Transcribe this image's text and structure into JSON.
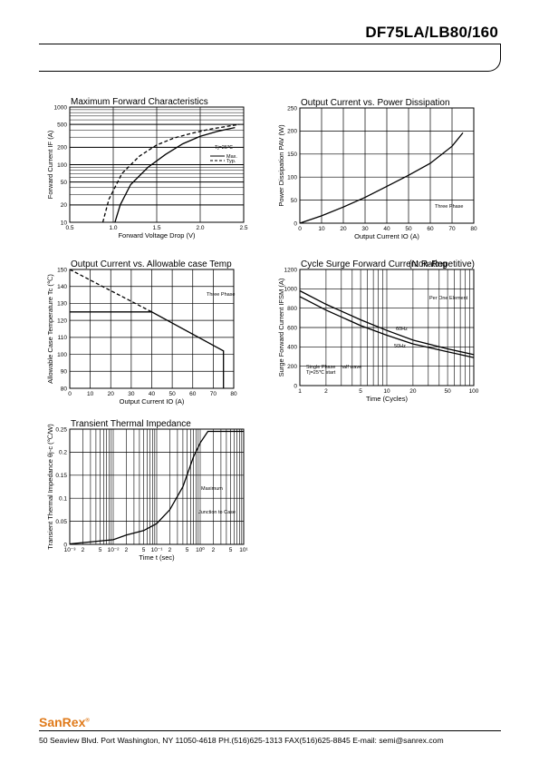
{
  "header": {
    "title": "DF75LA/LB80/160"
  },
  "footer": {
    "logo_text": "SanRex",
    "address": "50 Seaview Blvd.  Port Washington, NY 11050-4618  PH.(516)625-1313  FAX(516)625-8845  E-mail: semi@sanrex.com"
  },
  "chart_data": [
    {
      "id": "fwd",
      "type": "line",
      "title": "Maximum Forward Characteristics",
      "xlabel": "Forward Voltage Drop (V)",
      "ylabel": "Forward Current  IF (A)",
      "xlim": [
        0.5,
        2.5
      ],
      "ylim": [
        10,
        1000
      ],
      "yscale": "log",
      "xticks": [
        0.5,
        1.0,
        1.5,
        2.0,
        2.5
      ],
      "xtick_labels": [
        "0.5",
        "1.0",
        "1.5",
        "2.0",
        "2.5"
      ],
      "yticks": [
        10,
        20,
        50,
        100,
        200,
        500,
        1000
      ],
      "ytick_labels": [
        "10",
        "20",
        "50",
        "100",
        "200",
        "500",
        "1000"
      ],
      "annotations": [
        "Tj=25℃"
      ],
      "legend": [
        "Max.",
        "Typ."
      ],
      "series": [
        {
          "name": "Max.",
          "style": "solid",
          "x": [
            1.02,
            1.08,
            1.2,
            1.4,
            1.6,
            1.8,
            2.0,
            2.2,
            2.4
          ],
          "y": [
            10,
            20,
            45,
            90,
            150,
            230,
            310,
            380,
            440
          ]
        },
        {
          "name": "Typ.",
          "style": "dashed",
          "x": [
            0.88,
            0.95,
            1.1,
            1.3,
            1.5,
            1.7,
            1.9,
            2.1,
            2.3,
            2.45
          ],
          "y": [
            10,
            25,
            70,
            140,
            220,
            290,
            350,
            410,
            460,
            500
          ]
        }
      ]
    },
    {
      "id": "pow",
      "type": "line",
      "title": "Output Current vs. Power Dissipation",
      "xlabel": "Output Current IO (A)",
      "ylabel": "Power Dissipation PAV (W)",
      "xlim": [
        0,
        80
      ],
      "ylim": [
        0,
        250
      ],
      "xticks": [
        0,
        10,
        20,
        30,
        40,
        50,
        60,
        70,
        80
      ],
      "xtick_labels": [
        "0",
        "10",
        "20",
        "30",
        "40",
        "50",
        "60",
        "70",
        "80"
      ],
      "yticks": [
        0,
        50,
        100,
        150,
        200,
        250
      ],
      "ytick_labels": [
        "0",
        "50",
        "100",
        "150",
        "200",
        "250"
      ],
      "annotations": [
        "Three Phase"
      ],
      "series": [
        {
          "name": "Three Phase",
          "style": "solid",
          "x": [
            0,
            10,
            20,
            30,
            40,
            50,
            60,
            70,
            75
          ],
          "y": [
            0,
            16,
            35,
            56,
            80,
            104,
            130,
            167,
            196
          ]
        }
      ]
    },
    {
      "id": "case",
      "type": "line",
      "title": "Output Current vs. Allowable case Temp",
      "xlabel": "Output Current IO (A)",
      "ylabel": "Allowable Case Temperature Tc (℃)",
      "xlim": [
        0,
        80
      ],
      "ylim": [
        80,
        150
      ],
      "xticks": [
        0,
        10,
        20,
        30,
        40,
        50,
        60,
        70,
        80
      ],
      "xtick_labels": [
        "0",
        "10",
        "20",
        "30",
        "40",
        "50",
        "60",
        "70",
        "80"
      ],
      "yticks": [
        80,
        90,
        100,
        110,
        120,
        130,
        140,
        150
      ],
      "ytick_labels": [
        "80",
        "90",
        "100",
        "110",
        "120",
        "130",
        "140",
        "150"
      ],
      "annotations": [
        "Three Phase"
      ],
      "series": [
        {
          "name": "Three Phase",
          "style": "solid",
          "x": [
            0,
            40,
            75,
            75
          ],
          "y": [
            125,
            125,
            102,
            80
          ]
        },
        {
          "name": "",
          "style": "dashed",
          "x": [
            0,
            40
          ],
          "y": [
            150,
            125
          ]
        }
      ]
    },
    {
      "id": "surge",
      "type": "line",
      "title": "Cycle Surge Forward Current Rating",
      "subtitle": "(Non-Repetitive)",
      "xlabel": "Time (Cycles)",
      "ylabel": "Surge Forward Current IFSM (A)",
      "xlim": [
        1,
        100
      ],
      "xscale": "log",
      "ylim": [
        0,
        1200
      ],
      "xticks": [
        1,
        2,
        5,
        10,
        20,
        50,
        100
      ],
      "xtick_labels": [
        "1",
        "2",
        "5",
        "10",
        "20",
        "50",
        "100"
      ],
      "yticks": [
        0,
        200,
        400,
        600,
        800,
        1000,
        1200
      ],
      "ytick_labels": [
        "0",
        "200",
        "400",
        "600",
        "800",
        "1000",
        "1200"
      ],
      "annotations": [
        "Per One Element",
        "Single Phase",
        "half wave",
        "Tj=25℃ start",
        "60Hz",
        "50Hz"
      ],
      "series": [
        {
          "name": "60Hz",
          "style": "solid",
          "x": [
            1,
            2,
            5,
            10,
            20,
            50,
            100
          ],
          "y": [
            980,
            840,
            680,
            570,
            470,
            380,
            320
          ]
        },
        {
          "name": "50Hz",
          "style": "solid",
          "x": [
            1,
            2,
            5,
            10,
            20,
            50,
            100
          ],
          "y": [
            920,
            780,
            620,
            520,
            430,
            350,
            290
          ]
        }
      ]
    },
    {
      "id": "thermal",
      "type": "line",
      "title": "Transient Thermal Impedance",
      "xlabel": "Time t (sec)",
      "ylabel": "Transient Thermal Impedance θj-c (℃/W)",
      "xlim": [
        0.001,
        10
      ],
      "xscale": "log",
      "ylim": [
        0,
        0.25
      ],
      "xticks": [
        0.001,
        0.002,
        0.005,
        0.01,
        0.02,
        0.05,
        0.1,
        0.2,
        0.5,
        1,
        2,
        5,
        10
      ],
      "xtick_labels": [
        "10⁻³",
        "2",
        "5",
        "10⁻²",
        "2",
        "5",
        "10⁻¹",
        "2",
        "5",
        "10⁰",
        "2",
        "5",
        "10¹"
      ],
      "yticks": [
        0,
        0.05,
        0.1,
        0.15,
        0.2,
        0.25
      ],
      "ytick_labels": [
        "0",
        "0.05",
        "0.1",
        "0.15",
        "0.2",
        "0.25"
      ],
      "annotations": [
        "Maximum",
        "Junction to Case"
      ],
      "series": [
        {
          "name": "Maximum",
          "style": "solid",
          "x": [
            0.001,
            0.01,
            0.02,
            0.05,
            0.1,
            0.2,
            0.4,
            0.7,
            1,
            1.5,
            10
          ],
          "y": [
            0.001,
            0.01,
            0.02,
            0.03,
            0.045,
            0.075,
            0.125,
            0.19,
            0.22,
            0.245,
            0.245
          ]
        }
      ]
    }
  ]
}
